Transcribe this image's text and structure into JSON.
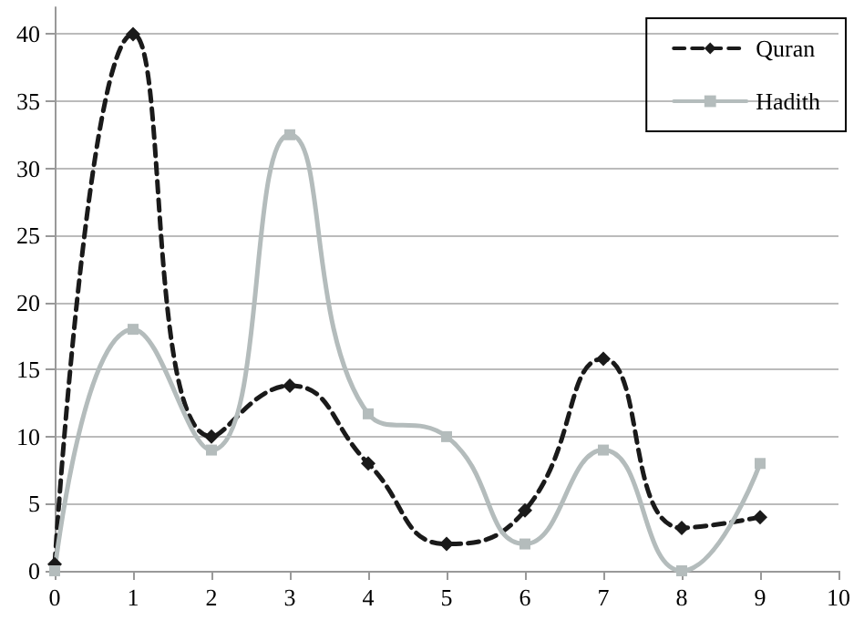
{
  "chart_data": {
    "type": "line",
    "x": [
      0,
      1,
      2,
      3,
      4,
      5,
      6,
      7,
      8,
      9
    ],
    "series": [
      {
        "name": "Quran",
        "color": "#1a1a1a",
        "marker": "diamond",
        "line_style": "dashed",
        "values": [
          0.5,
          40,
          10,
          13.8,
          8,
          2,
          4.5,
          15.8,
          3.2,
          4
        ]
      },
      {
        "name": "Hadith",
        "color": "#b4bcbc",
        "marker": "square",
        "line_style": "solid",
        "values": [
          0,
          18,
          9,
          32.5,
          11.7,
          10,
          2,
          9,
          0,
          8
        ]
      }
    ],
    "xlim": [
      0,
      10
    ],
    "xticks": [
      0,
      1,
      2,
      3,
      4,
      5,
      6,
      7,
      8,
      9,
      10
    ],
    "ylim": [
      0,
      42
    ],
    "yticks": [
      0,
      5,
      10,
      15,
      20,
      25,
      30,
      35,
      40
    ],
    "grid": "y",
    "legend": "top right"
  }
}
